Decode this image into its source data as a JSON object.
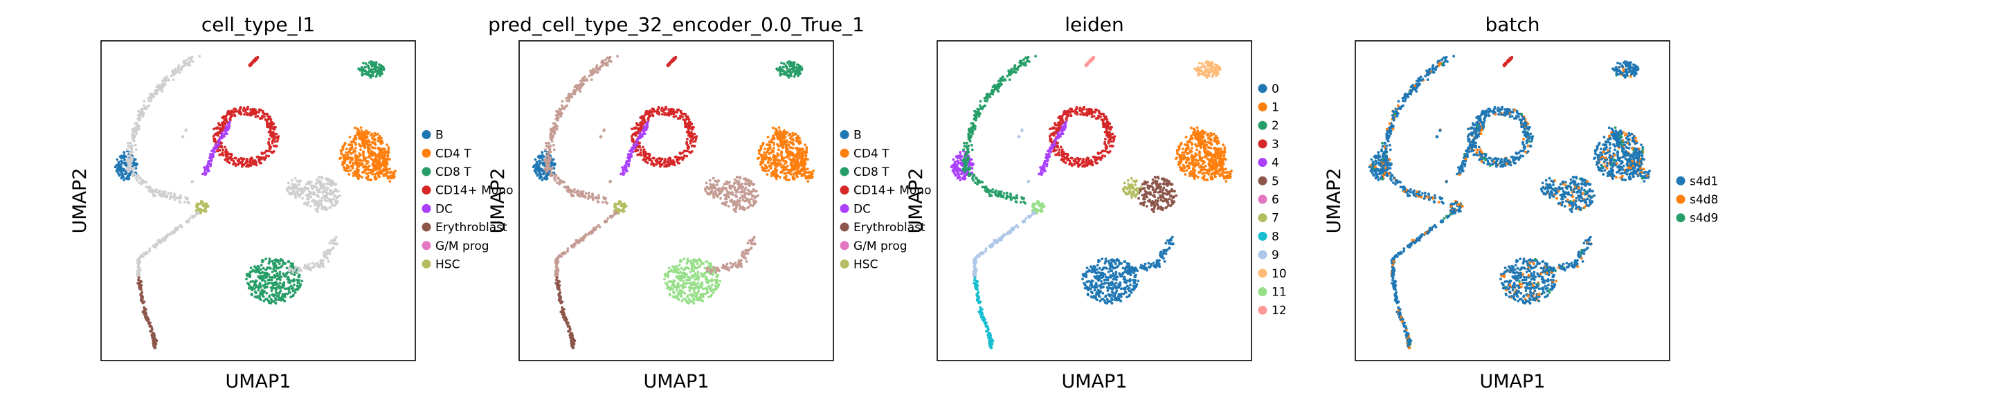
{
  "chart_data": [
    {
      "type": "scatter",
      "title": "cell_type_l1",
      "xlabel": "UMAP1",
      "ylabel": "UMAP2",
      "ticks": false,
      "legend_position": "right",
      "legend": [
        {
          "label": "B",
          "color": "#1f77b4"
        },
        {
          "label": "CD4 T",
          "color": "#ff7f0e"
        },
        {
          "label": "CD8 T",
          "color": "#279e68"
        },
        {
          "label": "CD14+ Mono",
          "color": "#d62728"
        },
        {
          "label": "DC",
          "color": "#aa40fc"
        },
        {
          "label": "Erythroblast",
          "color": "#8c564b"
        },
        {
          "label": "G/M prog",
          "color": "#e377c2"
        },
        {
          "label": "HSC",
          "color": "#b5bd61"
        }
      ]
    },
    {
      "type": "scatter",
      "title": "pred_cell_type_32_encoder_0.0_True_1",
      "xlabel": "UMAP1",
      "ylabel": "UMAP2",
      "ticks": false,
      "legend_position": "right",
      "legend": [
        {
          "label": "B",
          "color": "#1f77b4"
        },
        {
          "label": "CD4 T",
          "color": "#ff7f0e"
        },
        {
          "label": "CD8 T",
          "color": "#279e68"
        },
        {
          "label": "CD14+ Mono",
          "color": "#d62728"
        },
        {
          "label": "DC",
          "color": "#aa40fc"
        },
        {
          "label": "Erythroblast",
          "color": "#8c564b"
        },
        {
          "label": "G/M prog",
          "color": "#e377c2"
        },
        {
          "label": "HSC",
          "color": "#b5bd61"
        }
      ]
    },
    {
      "type": "scatter",
      "title": "leiden",
      "xlabel": "UMAP1",
      "ylabel": "UMAP2",
      "ticks": false,
      "legend_position": "right",
      "legend": [
        {
          "label": "0",
          "color": "#1f77b4"
        },
        {
          "label": "1",
          "color": "#ff7f0e"
        },
        {
          "label": "2",
          "color": "#279e68"
        },
        {
          "label": "3",
          "color": "#d62728"
        },
        {
          "label": "4",
          "color": "#aa40fc"
        },
        {
          "label": "5",
          "color": "#8c564b"
        },
        {
          "label": "6",
          "color": "#e377c2"
        },
        {
          "label": "7",
          "color": "#b5bd61"
        },
        {
          "label": "8",
          "color": "#17becf"
        },
        {
          "label": "9",
          "color": "#aec7e8"
        },
        {
          "label": "10",
          "color": "#ffbb78"
        },
        {
          "label": "11",
          "color": "#98df8a"
        },
        {
          "label": "12",
          "color": "#ff9896"
        }
      ]
    },
    {
      "type": "scatter",
      "title": "batch",
      "xlabel": "UMAP1",
      "ylabel": "UMAP2",
      "ticks": false,
      "legend_position": "right",
      "legend": [
        {
          "label": "s4d1",
          "color": "#1f77b4"
        },
        {
          "label": "s4d8",
          "color": "#ff7f0e"
        },
        {
          "label": "s4d9",
          "color": "#279e68"
        }
      ]
    }
  ]
}
